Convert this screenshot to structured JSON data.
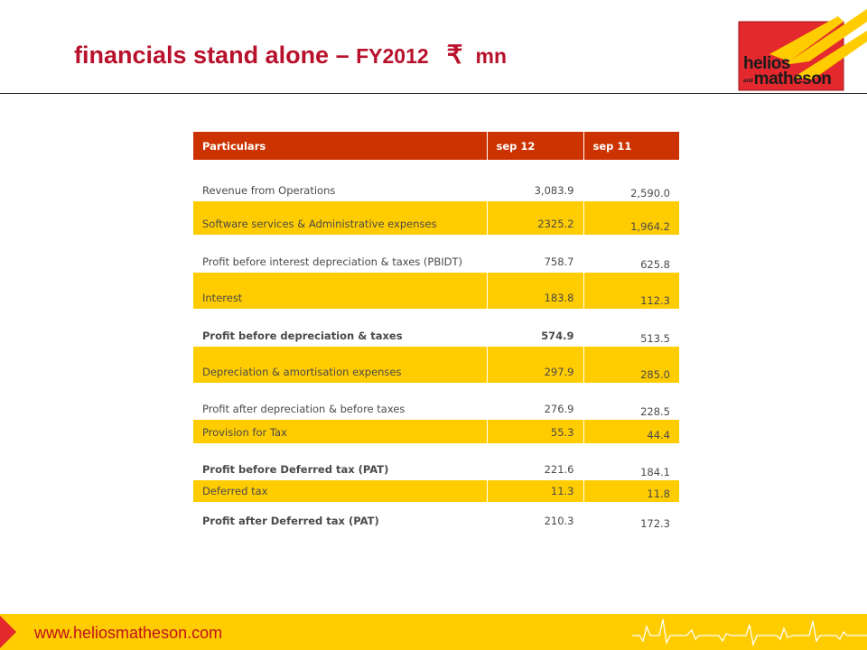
{
  "title": {
    "main": "financials stand alone – ",
    "sub": "FY2012",
    "currency": "₹",
    "unit": "mn"
  },
  "logo": {
    "line1": "helios",
    "and": "and",
    "line2": "matheson",
    "colors": {
      "red": "#e3282e",
      "yellow": "#ffcc00",
      "dark": "#1b1b1b"
    }
  },
  "table": {
    "headers": [
      "Particulars",
      "sep 12",
      "sep 11"
    ],
    "rows": [
      {
        "label": "Revenue from Operations",
        "sep12": "3,083.9",
        "sep11": "2,590.0"
      },
      {
        "label": "Software services & Administrative expenses",
        "sep12": "2325.2",
        "sep11": "1,964.2"
      },
      {
        "label": "Profit before interest depreciation & taxes (PBIDT)",
        "sep12": "758.7",
        "sep11": "625.8"
      },
      {
        "label": "Interest",
        "sep12": "183.8",
        "sep11": "112.3"
      },
      {
        "label": "Profit before depreciation & taxes",
        "sep12": "574.9",
        "sep11": "513.5"
      },
      {
        "label": "Depreciation & amortisation expenses",
        "sep12": "297.9",
        "sep11": "285.0"
      },
      {
        "label": "Profit after depreciation & before taxes",
        "sep12": "276.9",
        "sep11": "228.5"
      },
      {
        "label": "Provision for Tax",
        "sep12": "55.3",
        "sep11": "44.4"
      },
      {
        "label": "Profit before Deferred tax (PAT)",
        "sep12": "221.6",
        "sep11": "184.1"
      },
      {
        "label": "Deferred tax",
        "sep12": "11.3",
        "sep11": "11.8"
      },
      {
        "label": "Profit after Deferred tax (PAT)",
        "sep12": "210.3",
        "sep11": "172.3"
      }
    ]
  },
  "footer": {
    "url": "www.heliosmatheson.com"
  },
  "colors": {
    "title": "#b8112b",
    "header_bg": "#cc3300",
    "highlight_bg": "#ffcc00",
    "footer_bg": "#ffcc00",
    "url": "#c0121d"
  }
}
